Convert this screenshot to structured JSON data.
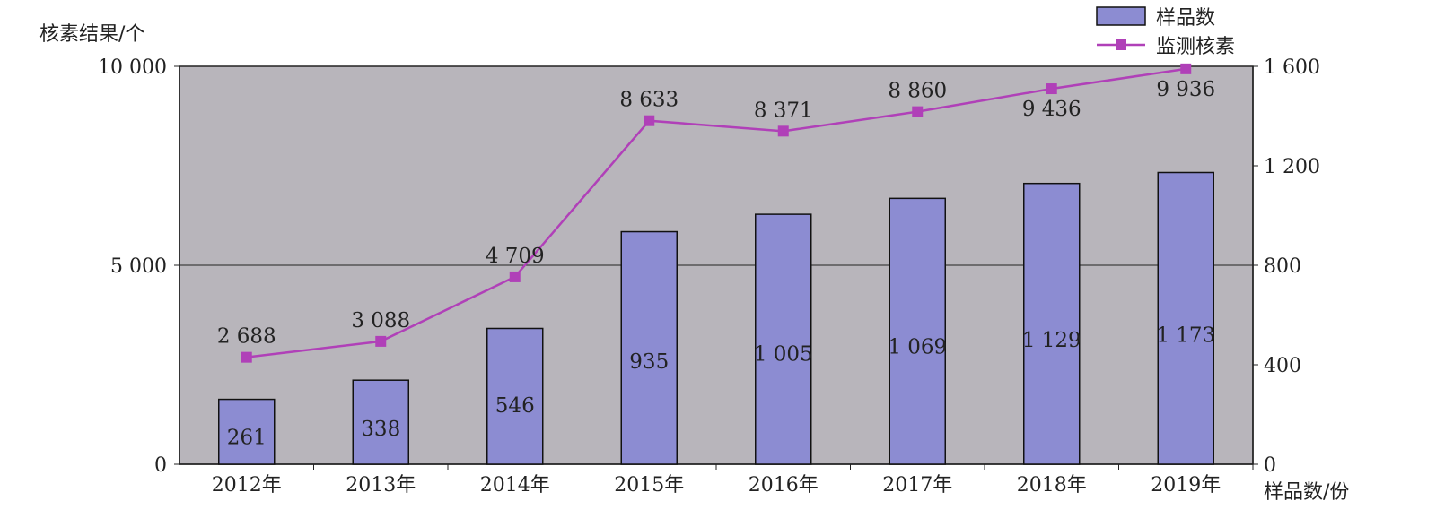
{
  "chart_data": {
    "type": "bar",
    "categories": [
      "2012年",
      "2013年",
      "2014年",
      "2015年",
      "2016年",
      "2017年",
      "2018年",
      "2019年"
    ],
    "series": [
      {
        "name": "样品数",
        "type": "bar",
        "axis": "right",
        "values": [
          261,
          338,
          546,
          935,
          1005,
          1069,
          1129,
          1173
        ],
        "labels": [
          "261",
          "338",
          "546",
          "935",
          "1 005",
          "1 069",
          "1 129",
          "1 173"
        ],
        "color": "#8c8cd2"
      },
      {
        "name": "监测核素",
        "type": "line",
        "axis": "left",
        "values": [
          2688,
          3088,
          4709,
          8633,
          8371,
          8860,
          9436,
          9936
        ],
        "labels": [
          "2 688",
          "3 088",
          "4 709",
          "8 633",
          "8 371",
          "8 860",
          "9 436",
          "9 936"
        ],
        "color": "#b040b8"
      }
    ],
    "y_left": {
      "label": "核素结果/个",
      "ylim": [
        0,
        10000
      ],
      "ticks": [
        0,
        5000,
        10000
      ],
      "tick_labels": [
        "0",
        "5 000",
        "10 000"
      ]
    },
    "y_right": {
      "label": "样品数/份",
      "ylim": [
        0,
        1600
      ],
      "ticks": [
        0,
        400,
        800,
        1200,
        1600
      ],
      "tick_labels": [
        "0",
        "400",
        "800",
        "1 200",
        "1 600"
      ]
    },
    "plot_background": "#b8b5bb",
    "grid": true,
    "legend_position": "top-right"
  }
}
